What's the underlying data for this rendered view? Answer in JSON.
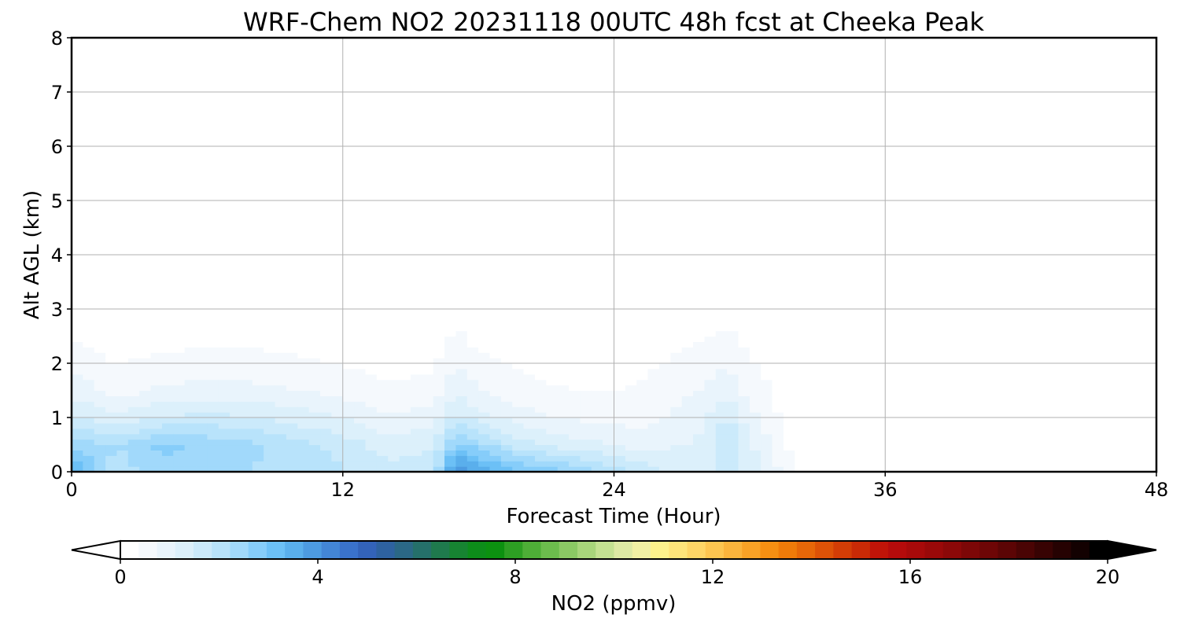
{
  "chart_data": {
    "type": "heatmap",
    "title": "WRF-Chem NO2  20231118 00UTC 48h fcst at Cheeka Peak",
    "xlabel": "Forecast Time (Hour)",
    "ylabel": "Alt AGL (km)",
    "xlim": [
      0,
      48
    ],
    "ylim": [
      0,
      8
    ],
    "x_ticks": [
      "0",
      "12",
      "24",
      "36",
      "48"
    ],
    "x_tick_values": [
      0,
      12,
      24,
      36,
      48
    ],
    "y_ticks": [
      "0",
      "1",
      "2",
      "3",
      "4",
      "5",
      "6",
      "7",
      "8"
    ],
    "y_tick_values": [
      0,
      1,
      2,
      3,
      4,
      5,
      6,
      7,
      8
    ],
    "grid": true,
    "colorbar": {
      "label": "NO2  (ppmv)",
      "min": 0,
      "max": 20,
      "ticks": [
        "0",
        "4",
        "8",
        "12",
        "16",
        "20"
      ],
      "tick_values": [
        0,
        4,
        8,
        12,
        16,
        20
      ],
      "extend": "both",
      "orientation": "horizontal",
      "colors": [
        "#ffffff",
        "#f5f9fd",
        "#e9f4fc",
        "#dcf0fb",
        "#cbeafb",
        "#b8e3fb",
        "#a1d9fb",
        "#86cdfa",
        "#6cc0f6",
        "#5aafec",
        "#4d9be1",
        "#4386d6",
        "#3a72cb",
        "#3363b9",
        "#2e62a0",
        "#2b6886",
        "#25706a",
        "#1f7a4d",
        "#178432",
        "#0d8d1a",
        "#0c9110",
        "#2d9f23",
        "#4eae37",
        "#6cbc4d",
        "#8bc964",
        "#a8d57b",
        "#c4e192",
        "#dde9a4",
        "#f1f0a4",
        "#fcf18c",
        "#fee47a",
        "#fed566",
        "#fdc550",
        "#fbb43c",
        "#f9a226",
        "#f68f12",
        "#f07b09",
        "#e76708",
        "#dd5207",
        "#d33d06",
        "#c92a06",
        "#c01408",
        "#b50b0b",
        "#a80a0a",
        "#9a0909",
        "#8c0808",
        "#7d0707",
        "#6e0606",
        "#5c0505",
        "#4a0404",
        "#380303",
        "#260202",
        "#130101",
        "#000000"
      ]
    },
    "series": [
      {
        "x": 0,
        "values": [
          3.5,
          2.5,
          1.5,
          1.0,
          0.6,
          0.35,
          0.18,
          0.08,
          0.0,
          0.0,
          0.0,
          0.0,
          0.0,
          0.0,
          0.0,
          0.0,
          0.0
        ]
      },
      {
        "x": 2,
        "values": [
          2.0,
          2.2,
          1.2,
          0.6,
          0.35,
          0.2,
          0.1,
          0.05,
          0.0,
          0.0,
          0.0,
          0.0,
          0.0,
          0.0,
          0.0,
          0.0,
          0.0
        ]
      },
      {
        "x": 4,
        "values": [
          2.5,
          2.7,
          1.5,
          0.8,
          0.45,
          0.25,
          0.12,
          0.06,
          0.02,
          0.0,
          0.0,
          0.0,
          0.0,
          0.0,
          0.0,
          0.0,
          0.0
        ]
      },
      {
        "x": 6,
        "values": [
          2.3,
          2.5,
          1.6,
          0.9,
          0.5,
          0.28,
          0.14,
          0.07,
          0.03,
          0.0,
          0.0,
          0.0,
          0.0,
          0.0,
          0.0,
          0.0,
          0.0
        ]
      },
      {
        "x": 8,
        "values": [
          2.2,
          2.3,
          1.5,
          0.85,
          0.5,
          0.28,
          0.14,
          0.07,
          0.03,
          0.0,
          0.0,
          0.0,
          0.0,
          0.0,
          0.0,
          0.0,
          0.0
        ]
      },
      {
        "x": 10,
        "values": [
          2.1,
          2.0,
          1.3,
          0.75,
          0.42,
          0.24,
          0.12,
          0.06,
          0.02,
          0.0,
          0.0,
          0.0,
          0.0,
          0.0,
          0.0,
          0.0,
          0.0
        ]
      },
      {
        "x": 12,
        "values": [
          1.9,
          1.7,
          1.1,
          0.62,
          0.35,
          0.2,
          0.1,
          0.05,
          0.02,
          0.0,
          0.0,
          0.0,
          0.0,
          0.0,
          0.0,
          0.0,
          0.0
        ]
      },
      {
        "x": 14,
        "values": [
          1.6,
          1.3,
          0.8,
          0.45,
          0.25,
          0.14,
          0.07,
          0.03,
          0.0,
          0.0,
          0.0,
          0.0,
          0.0,
          0.0,
          0.0,
          0.0,
          0.0
        ]
      },
      {
        "x": 16,
        "values": [
          1.8,
          1.4,
          0.9,
          0.5,
          0.3,
          0.18,
          0.1,
          0.05,
          0.02,
          0.0,
          0.0,
          0.0,
          0.0,
          0.0,
          0.0,
          0.0,
          0.0
        ]
      },
      {
        "x": 17,
        "values": [
          4.2,
          2.8,
          1.6,
          1.1,
          0.75,
          0.45,
          0.28,
          0.18,
          0.1,
          0.05,
          0.0,
          0.0,
          0.0,
          0.0,
          0.0,
          0.0,
          0.0
        ]
      },
      {
        "x": 18,
        "values": [
          3.6,
          2.4,
          1.3,
          0.75,
          0.45,
          0.25,
          0.14,
          0.08,
          0.04,
          0.02,
          0.0,
          0.0,
          0.0,
          0.0,
          0.0,
          0.0,
          0.0
        ]
      },
      {
        "x": 20,
        "values": [
          3.0,
          1.6,
          0.9,
          0.5,
          0.3,
          0.15,
          0.08,
          0.04,
          0.02,
          0.0,
          0.0,
          0.0,
          0.0,
          0.0,
          0.0,
          0.0,
          0.0
        ]
      },
      {
        "x": 22,
        "values": [
          2.6,
          1.3,
          0.7,
          0.38,
          0.2,
          0.1,
          0.06,
          0.03,
          0.02,
          0.0,
          0.0,
          0.0,
          0.0,
          0.0,
          0.0,
          0.0,
          0.0
        ]
      },
      {
        "x": 24,
        "values": [
          2.1,
          1.1,
          0.6,
          0.35,
          0.2,
          0.12,
          0.08,
          0.05,
          0.04,
          0.05,
          0.05,
          0.02,
          0.0,
          0.0,
          0.0,
          0.0,
          0.0
        ]
      },
      {
        "x": 25,
        "values": [
          1.8,
          1.0,
          0.6,
          0.4,
          0.28,
          0.18,
          0.12,
          0.1,
          0.12,
          0.3,
          0.25,
          0.08,
          0.02,
          0.0,
          0.0,
          0.0,
          0.0
        ]
      },
      {
        "x": 26,
        "values": [
          1.5,
          1.0,
          0.7,
          0.5,
          0.35,
          0.25,
          0.15,
          0.1,
          0.08,
          0.1,
          0.08,
          0.02,
          0.0,
          0.0,
          0.0,
          0.0,
          0.0
        ]
      },
      {
        "x": 28,
        "values": [
          1.4,
          1.2,
          1.0,
          0.8,
          0.55,
          0.35,
          0.2,
          0.1,
          0.05,
          0.04,
          0.04,
          0.02,
          0.0,
          0.0,
          0.0,
          0.0,
          0.0
        ]
      },
      {
        "x": 29,
        "values": [
          1.6,
          1.8,
          1.6,
          1.0,
          0.7,
          0.45,
          0.25,
          0.12,
          0.06,
          0.06,
          0.06,
          0.03,
          0.02,
          0.02,
          0.02,
          0.02,
          0.01
        ]
      },
      {
        "x": 30,
        "values": [
          1.3,
          1.2,
          0.9,
          0.6,
          0.4,
          0.25,
          0.15,
          0.08,
          0.06,
          0.06,
          0.06,
          0.04,
          0.03,
          0.04,
          0.04,
          0.03,
          0.02
        ]
      },
      {
        "x": 31,
        "values": [
          0.9,
          0.7,
          0.5,
          0.35,
          0.25,
          0.15,
          0.08,
          0.05,
          0.05,
          0.05,
          0.05,
          0.04,
          0.04,
          0.06,
          0.07,
          0.05,
          0.03
        ]
      },
      {
        "x": 32,
        "values": [
          0.35,
          0.2,
          0.1,
          0.05,
          0.03,
          0.03,
          0.04,
          0.05,
          0.05,
          0.05,
          0.06,
          0.08,
          0.1,
          0.14,
          0.16,
          0.12,
          0.06
        ]
      },
      {
        "x": 33,
        "values": [
          0.1,
          0.06,
          0.04,
          0.03,
          0.03,
          0.03,
          0.04,
          0.05,
          0.06,
          0.07,
          0.1,
          0.15,
          0.2,
          0.25,
          0.24,
          0.14,
          0.08
        ]
      },
      {
        "x": 34,
        "values": [
          0.04,
          0.03,
          0.03,
          0.03,
          0.03,
          0.04,
          0.05,
          0.06,
          0.08,
          0.1,
          0.12,
          0.18,
          0.26,
          0.3,
          0.26,
          0.17,
          0.09
        ]
      },
      {
        "x": 35,
        "values": [
          0.03,
          0.04,
          0.04,
          0.04,
          0.03,
          0.03,
          0.04,
          0.05,
          0.06,
          0.08,
          0.1,
          0.15,
          0.2,
          0.2,
          0.15,
          0.08,
          0.04
        ]
      },
      {
        "x": 36,
        "values": [
          0.04,
          0.05,
          0.04,
          0.03,
          0.02,
          0.02,
          0.03,
          0.04,
          0.05,
          0.06,
          0.07,
          0.08,
          0.1,
          0.1,
          0.07,
          0.04,
          0.02
        ]
      },
      {
        "x": 38,
        "values": [
          0.03,
          0.03,
          0.02,
          0.02,
          0.02,
          0.02,
          0.02,
          0.02,
          0.03,
          0.03,
          0.03,
          0.04,
          0.04,
          0.04,
          0.03,
          0.02,
          0.02
        ]
      },
      {
        "x": 40,
        "values": [
          0.02,
          0.02,
          0.02,
          0.02,
          0.02,
          0.02,
          0.02,
          0.02,
          0.02,
          0.02,
          0.02,
          0.02,
          0.02,
          0.02,
          0.02,
          0.02,
          0.02
        ]
      },
      {
        "x": 44,
        "values": [
          0.02,
          0.02,
          0.02,
          0.02,
          0.02,
          0.02,
          0.02,
          0.02,
          0.02,
          0.02,
          0.02,
          0.02,
          0.02,
          0.02,
          0.02,
          0.02,
          0.02
        ]
      },
      {
        "x": 48,
        "values": [
          0.02,
          0.02,
          0.02,
          0.02,
          0.02,
          0.02,
          0.02,
          0.02,
          0.02,
          0.02,
          0.02,
          0.02,
          0.02,
          0.02,
          0.02,
          0.02,
          0.02
        ]
      }
    ],
    "y": [
      0,
      0.5,
      1,
      1.5,
      2,
      2.5,
      3,
      3.5,
      4,
      4.5,
      5,
      5.5,
      6,
      6.5,
      7,
      7.5,
      8
    ]
  }
}
